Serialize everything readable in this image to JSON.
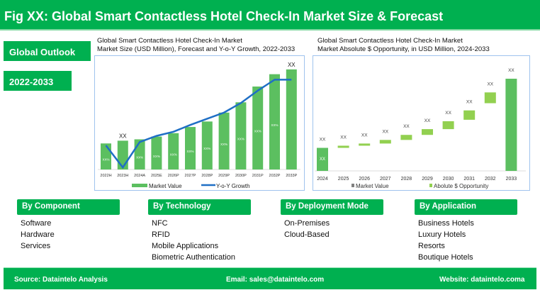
{
  "header": {
    "title": "Fig XX: Global Smart Contactless Hotel Check-In Market Size & Forecast"
  },
  "tags": {
    "outlook": "Global Outlook",
    "period": "2022-2033"
  },
  "colors": {
    "brand": "#00b050",
    "bar": "#5cbf60",
    "line": "#1f6fc5",
    "opportunity": "#92d050",
    "legend_market_value_right": "#808080"
  },
  "chart_data": [
    {
      "type": "bar",
      "title_line1": "Global Smart Contactless Hotel Check-In Market",
      "title_line2": "Market Size (USD Million), Forecast and Y-o-Y Growth, 2022-2033",
      "categories": [
        "2022H",
        "2023H",
        "2024A",
        "2025E",
        "2026P",
        "2027P",
        "2028P",
        "2029P",
        "2030P",
        "2031P",
        "2032P",
        "2033P"
      ],
      "series": [
        {
          "name": "Market Value",
          "type": "bar",
          "values": [
            38,
            42,
            44,
            48,
            53,
            62,
            70,
            83,
            98,
            121,
            139,
            146
          ]
        },
        {
          "name": "Y-o-Y Growth",
          "type": "line",
          "values": [
            35,
            3,
            40,
            49,
            55,
            65,
            74,
            83,
            97,
            115,
            131,
            131
          ]
        }
      ],
      "bar_labels": [
        "XX%",
        "XX",
        "XX%",
        "XX%",
        "XX%",
        "XX%",
        "XX%",
        "XX%",
        "XX%",
        "XX%",
        "XX%",
        "XX"
      ],
      "grid": false,
      "legend": "bottom"
    },
    {
      "type": "bar",
      "subtype": "waterfall",
      "title_line1": "Global Smart Contactless Hotel Check-In Market",
      "title_line2": "Market Absolute $ Opportunity, in USD Million, 2024-2033",
      "categories": [
        "2024",
        "2025",
        "2026",
        "2027",
        "2028",
        "2029",
        "2030",
        "2031",
        "2032",
        "2033"
      ],
      "base": [
        0,
        32,
        35,
        38,
        43,
        50,
        58,
        71,
        94,
        0
      ],
      "values": [
        32,
        3,
        3,
        5,
        7,
        8,
        11,
        13,
        15,
        128
      ],
      "kinds": [
        "total",
        "delta",
        "delta",
        "delta",
        "delta",
        "delta",
        "delta",
        "delta",
        "delta",
        "total"
      ],
      "data_labels": [
        "XX",
        "XX",
        "XX",
        "XX",
        "XX",
        "XX",
        "XX",
        "XX",
        "XX",
        "XX"
      ],
      "inner_label": "XX",
      "legend_entries": [
        "Market Value",
        "Abolute $ Opportunity"
      ],
      "grid": false,
      "legend": "bottom"
    }
  ],
  "segments": [
    {
      "title": "By Component",
      "items": [
        "Software",
        "Hardware",
        "Services"
      ]
    },
    {
      "title": "By Technology",
      "items": [
        "NFC",
        "RFID",
        "Mobile Applications",
        "Biometric Authentication"
      ]
    },
    {
      "title": "By Deployment Mode",
      "items": [
        "On-Premises",
        "Cloud-Based"
      ]
    },
    {
      "title": "By Application",
      "items": [
        "Business Hotels",
        "Luxury Hotels",
        "Resorts",
        "Boutique Hotels"
      ]
    }
  ],
  "footer": {
    "source": "Source: Dataintelo  Analysis",
    "email": "Email: sales@dataintelo.com",
    "website": "Website:  dataintelo.coma"
  }
}
